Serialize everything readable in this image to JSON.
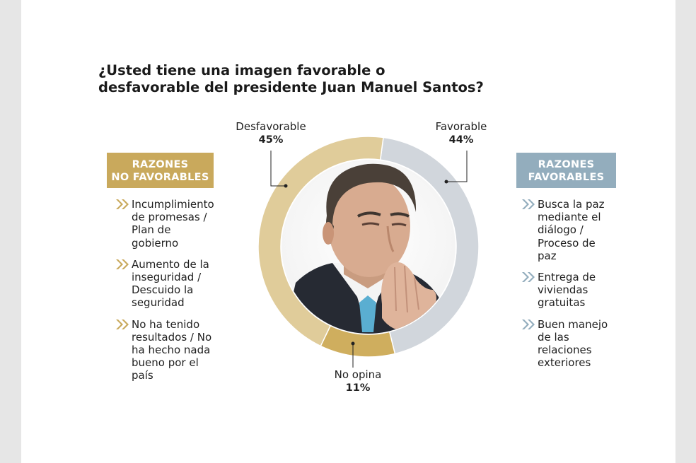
{
  "title": "¿Usted tiene una imagen favorable o\ndesfavorable del presidente Juan Manuel Santos?",
  "colors": {
    "desfavorable": "#e0cc9a",
    "favorable": "#d1d6dc",
    "no_opina": "#cfae5e",
    "box_negative": "#c9a95c",
    "box_positive": "#93adbd",
    "bullet_negative": "#c9a95c",
    "bullet_positive": "#93adbd"
  },
  "chart_data": {
    "type": "pie",
    "donut": true,
    "slices": [
      {
        "label": "Desfavorable",
        "value": 45,
        "display": "45%"
      },
      {
        "label": "Favorable",
        "value": 44,
        "display": "44%"
      },
      {
        "label": "No opina",
        "value": 11,
        "display": "11%"
      }
    ],
    "center_image": "photo-of-president"
  },
  "negative": {
    "heading_line1": "RAZONES",
    "heading_line2": "NO FAVORABLES",
    "icon": "double-chevron-right-icon",
    "items": [
      "Incumplimiento\nde promesas /\nPlan de\ngobierno",
      "Aumento de la\ninseguridad /\nDescuido la\nseguridad",
      "No ha tenido\nresultados / No\nha hecho nada\nbueno por el\npaís"
    ]
  },
  "positive": {
    "heading_line1": "RAZONES",
    "heading_line2": "FAVORABLES",
    "icon": "double-chevron-right-icon",
    "items": [
      "Busca la paz\nmediante el\ndiálogo /\nProceso de\npaz",
      "Entrega de\nviviendas\ngratuitas",
      "Buen manejo\nde las\nrelaciones\nexteriores"
    ]
  }
}
